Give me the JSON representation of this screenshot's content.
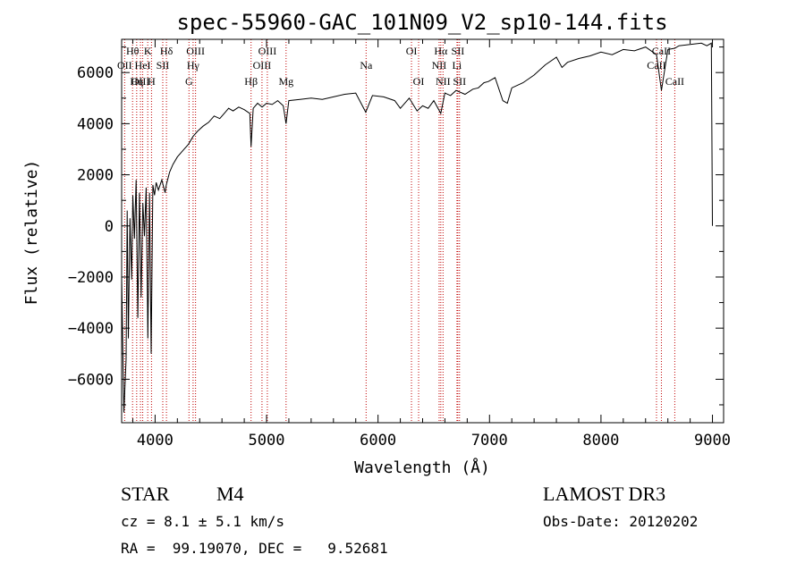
{
  "chart_data": {
    "type": "line",
    "title": "spec-55960-GAC_101N09_V2_sp10-144.fits",
    "xlabel": "Wavelength (Å)",
    "ylabel": "Flux (relative)",
    "xlim": [
      3700,
      9100
    ],
    "ylim": [
      -7700,
      7300
    ],
    "xticks": [
      4000,
      5000,
      6000,
      7000,
      8000,
      9000
    ],
    "yticks": [
      -6000,
      -4000,
      -2000,
      0,
      2000,
      4000,
      6000
    ],
    "grid": false,
    "series": [
      {
        "x": [
          3700,
          3720,
          3740,
          3750,
          3760,
          3775,
          3790,
          3800,
          3815,
          3830,
          3845,
          3860,
          3875,
          3890,
          3905,
          3920,
          3935,
          3950,
          3965,
          3980,
          3995,
          4010,
          4030,
          4060,
          4090,
          4100,
          4130,
          4160,
          4200,
          4250,
          4300,
          4340,
          4380,
          4430,
          4480,
          4530,
          4580,
          4620,
          4660,
          4700,
          4750,
          4800,
          4850,
          4861,
          4880,
          4920,
          4960,
          5000,
          5050,
          5100,
          5150,
          5175,
          5200,
          5300,
          5400,
          5500,
          5600,
          5700,
          5800,
          5890,
          5950,
          6050,
          6150,
          6200,
          6280,
          6350,
          6400,
          6450,
          6500,
          6563,
          6600,
          6650,
          6700,
          6780,
          6850,
          6900,
          6950,
          6990,
          7050,
          7120,
          7160,
          7200,
          7300,
          7400,
          7500,
          7600,
          7650,
          7700,
          7800,
          7900,
          8000,
          8100,
          8200,
          8300,
          8400,
          8498,
          8542,
          8600,
          8662,
          8700,
          8800,
          8900,
          8950,
          8990,
          9000
        ],
        "y": [
          -2000,
          -7300,
          -5200,
          600,
          -4400,
          300,
          -2100,
          1200,
          -500,
          1800,
          -3600,
          1300,
          -2800,
          900,
          -400,
          1500,
          -4400,
          1300,
          -5000,
          1600,
          1200,
          1700,
          1400,
          1800,
          1300,
          1600,
          2100,
          2400,
          2700,
          2950,
          3200,
          3500,
          3700,
          3900,
          4050,
          4300,
          4200,
          4400,
          4600,
          4500,
          4650,
          4550,
          4400,
          3100,
          4600,
          4800,
          4650,
          4800,
          4750,
          4900,
          4700,
          4000,
          4900,
          4950,
          5000,
          4950,
          5050,
          5150,
          5200,
          4450,
          5100,
          5050,
          4900,
          4600,
          5000,
          4500,
          4700,
          4600,
          4900,
          4400,
          5200,
          5100,
          5300,
          5150,
          5350,
          5400,
          5600,
          5650,
          5800,
          4900,
          4800,
          5400,
          5600,
          5900,
          6300,
          6600,
          6200,
          6400,
          6550,
          6650,
          6800,
          6700,
          6900,
          6850,
          7000,
          6700,
          5300,
          6900,
          6950,
          7050,
          7100,
          7150,
          7050,
          7150,
          0
        ]
      }
    ],
    "emission_lines": [
      {
        "label": "Hθ",
        "x": 3798,
        "row": 1
      },
      {
        "label": "OII",
        "x": 3727,
        "row": 2
      },
      {
        "label": "OIII",
        "x": 3869,
        "row": 3
      },
      {
        "label": "K",
        "x": 3934,
        "row": 1
      },
      {
        "label": "HeI",
        "x": 3889,
        "row": 2
      },
      {
        "label": "Hη",
        "x": 3835,
        "row": 3
      },
      {
        "label": "SII",
        "x": 4069,
        "row": 2
      },
      {
        "label": "H",
        "x": 3968,
        "row": 3
      },
      {
        "label": "Hδ",
        "x": 4102,
        "row": 1
      },
      {
        "label": "OIII",
        "x": 4363,
        "row": 1
      },
      {
        "label": "Hγ",
        "x": 4341,
        "row": 2
      },
      {
        "label": "G",
        "x": 4304,
        "row": 3
      },
      {
        "label": "OIII",
        "x": 5007,
        "row": 1
      },
      {
        "label": "OIII",
        "x": 4959,
        "row": 2
      },
      {
        "label": "Hβ",
        "x": 4861,
        "row": 3
      },
      {
        "label": "Mg",
        "x": 5175,
        "row": 3
      },
      {
        "label": "Na",
        "x": 5893,
        "row": 2
      },
      {
        "label": "OI",
        "x": 6300,
        "row": 1
      },
      {
        "label": "OI",
        "x": 6364,
        "row": 3
      },
      {
        "label": "Hα",
        "x": 6563,
        "row": 1
      },
      {
        "label": "NII",
        "x": 6548,
        "row": 2
      },
      {
        "label": "NII",
        "x": 6583,
        "row": 3
      },
      {
        "label": "SII",
        "x": 6716,
        "row": 1
      },
      {
        "label": "Li",
        "x": 6708,
        "row": 2
      },
      {
        "label": "SII",
        "x": 6731,
        "row": 3
      },
      {
        "label": "CaII",
        "x": 8542,
        "row": 1
      },
      {
        "label": "CaII",
        "x": 8498,
        "row": 2
      },
      {
        "label": "CaII",
        "x": 8662,
        "row": 3
      }
    ]
  },
  "info": {
    "class": "STAR",
    "subclass": "M4",
    "survey": "LAMOST DR3",
    "cz": "cz = 8.1 ± 5.1 km/s",
    "obs_date": "Obs-Date: 20120202",
    "coords": "RA =  99.19070, DEC =   9.52681"
  }
}
